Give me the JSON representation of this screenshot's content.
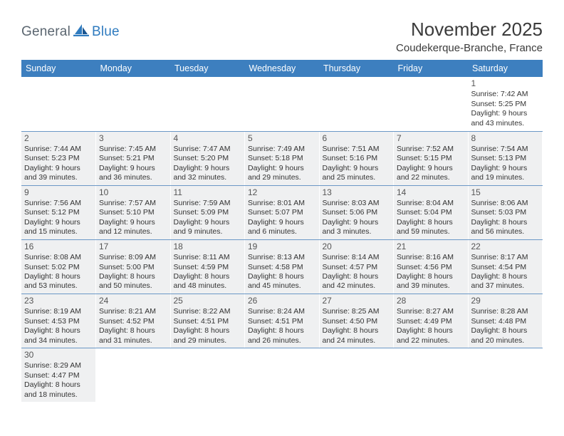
{
  "logo": {
    "part1": "General",
    "part2": "Blue"
  },
  "title": "November 2025",
  "location": "Coudekerque-Branche, France",
  "columns": [
    "Sunday",
    "Monday",
    "Tuesday",
    "Wednesday",
    "Thursday",
    "Friday",
    "Saturday"
  ],
  "colors": {
    "header_bg": "#3d7fbf",
    "header_fg": "#ffffff",
    "cell_bg": "#eff0f1",
    "rule": "#6b98c6",
    "logo_gray": "#5b6670",
    "logo_blue": "#2f7bbf"
  },
  "weeks": [
    [
      null,
      null,
      null,
      null,
      null,
      null,
      {
        "n": "1",
        "sr": "7:42 AM",
        "ss": "5:25 PM",
        "dl": "9 hours and 43 minutes."
      }
    ],
    [
      {
        "n": "2",
        "sr": "7:44 AM",
        "ss": "5:23 PM",
        "dl": "9 hours and 39 minutes."
      },
      {
        "n": "3",
        "sr": "7:45 AM",
        "ss": "5:21 PM",
        "dl": "9 hours and 36 minutes."
      },
      {
        "n": "4",
        "sr": "7:47 AM",
        "ss": "5:20 PM",
        "dl": "9 hours and 32 minutes."
      },
      {
        "n": "5",
        "sr": "7:49 AM",
        "ss": "5:18 PM",
        "dl": "9 hours and 29 minutes."
      },
      {
        "n": "6",
        "sr": "7:51 AM",
        "ss": "5:16 PM",
        "dl": "9 hours and 25 minutes."
      },
      {
        "n": "7",
        "sr": "7:52 AM",
        "ss": "5:15 PM",
        "dl": "9 hours and 22 minutes."
      },
      {
        "n": "8",
        "sr": "7:54 AM",
        "ss": "5:13 PM",
        "dl": "9 hours and 19 minutes."
      }
    ],
    [
      {
        "n": "9",
        "sr": "7:56 AM",
        "ss": "5:12 PM",
        "dl": "9 hours and 15 minutes."
      },
      {
        "n": "10",
        "sr": "7:57 AM",
        "ss": "5:10 PM",
        "dl": "9 hours and 12 minutes."
      },
      {
        "n": "11",
        "sr": "7:59 AM",
        "ss": "5:09 PM",
        "dl": "9 hours and 9 minutes."
      },
      {
        "n": "12",
        "sr": "8:01 AM",
        "ss": "5:07 PM",
        "dl": "9 hours and 6 minutes."
      },
      {
        "n": "13",
        "sr": "8:03 AM",
        "ss": "5:06 PM",
        "dl": "9 hours and 3 minutes."
      },
      {
        "n": "14",
        "sr": "8:04 AM",
        "ss": "5:04 PM",
        "dl": "8 hours and 59 minutes."
      },
      {
        "n": "15",
        "sr": "8:06 AM",
        "ss": "5:03 PM",
        "dl": "8 hours and 56 minutes."
      }
    ],
    [
      {
        "n": "16",
        "sr": "8:08 AM",
        "ss": "5:02 PM",
        "dl": "8 hours and 53 minutes."
      },
      {
        "n": "17",
        "sr": "8:09 AM",
        "ss": "5:00 PM",
        "dl": "8 hours and 50 minutes."
      },
      {
        "n": "18",
        "sr": "8:11 AM",
        "ss": "4:59 PM",
        "dl": "8 hours and 48 minutes."
      },
      {
        "n": "19",
        "sr": "8:13 AM",
        "ss": "4:58 PM",
        "dl": "8 hours and 45 minutes."
      },
      {
        "n": "20",
        "sr": "8:14 AM",
        "ss": "4:57 PM",
        "dl": "8 hours and 42 minutes."
      },
      {
        "n": "21",
        "sr": "8:16 AM",
        "ss": "4:56 PM",
        "dl": "8 hours and 39 minutes."
      },
      {
        "n": "22",
        "sr": "8:17 AM",
        "ss": "4:54 PM",
        "dl": "8 hours and 37 minutes."
      }
    ],
    [
      {
        "n": "23",
        "sr": "8:19 AM",
        "ss": "4:53 PM",
        "dl": "8 hours and 34 minutes."
      },
      {
        "n": "24",
        "sr": "8:21 AM",
        "ss": "4:52 PM",
        "dl": "8 hours and 31 minutes."
      },
      {
        "n": "25",
        "sr": "8:22 AM",
        "ss": "4:51 PM",
        "dl": "8 hours and 29 minutes."
      },
      {
        "n": "26",
        "sr": "8:24 AM",
        "ss": "4:51 PM",
        "dl": "8 hours and 26 minutes."
      },
      {
        "n": "27",
        "sr": "8:25 AM",
        "ss": "4:50 PM",
        "dl": "8 hours and 24 minutes."
      },
      {
        "n": "28",
        "sr": "8:27 AM",
        "ss": "4:49 PM",
        "dl": "8 hours and 22 minutes."
      },
      {
        "n": "29",
        "sr": "8:28 AM",
        "ss": "4:48 PM",
        "dl": "8 hours and 20 minutes."
      }
    ],
    [
      {
        "n": "30",
        "sr": "8:29 AM",
        "ss": "4:47 PM",
        "dl": "8 hours and 18 minutes."
      },
      null,
      null,
      null,
      null,
      null,
      null
    ]
  ],
  "labels": {
    "sunrise": "Sunrise:",
    "sunset": "Sunset:",
    "daylight": "Daylight:"
  }
}
